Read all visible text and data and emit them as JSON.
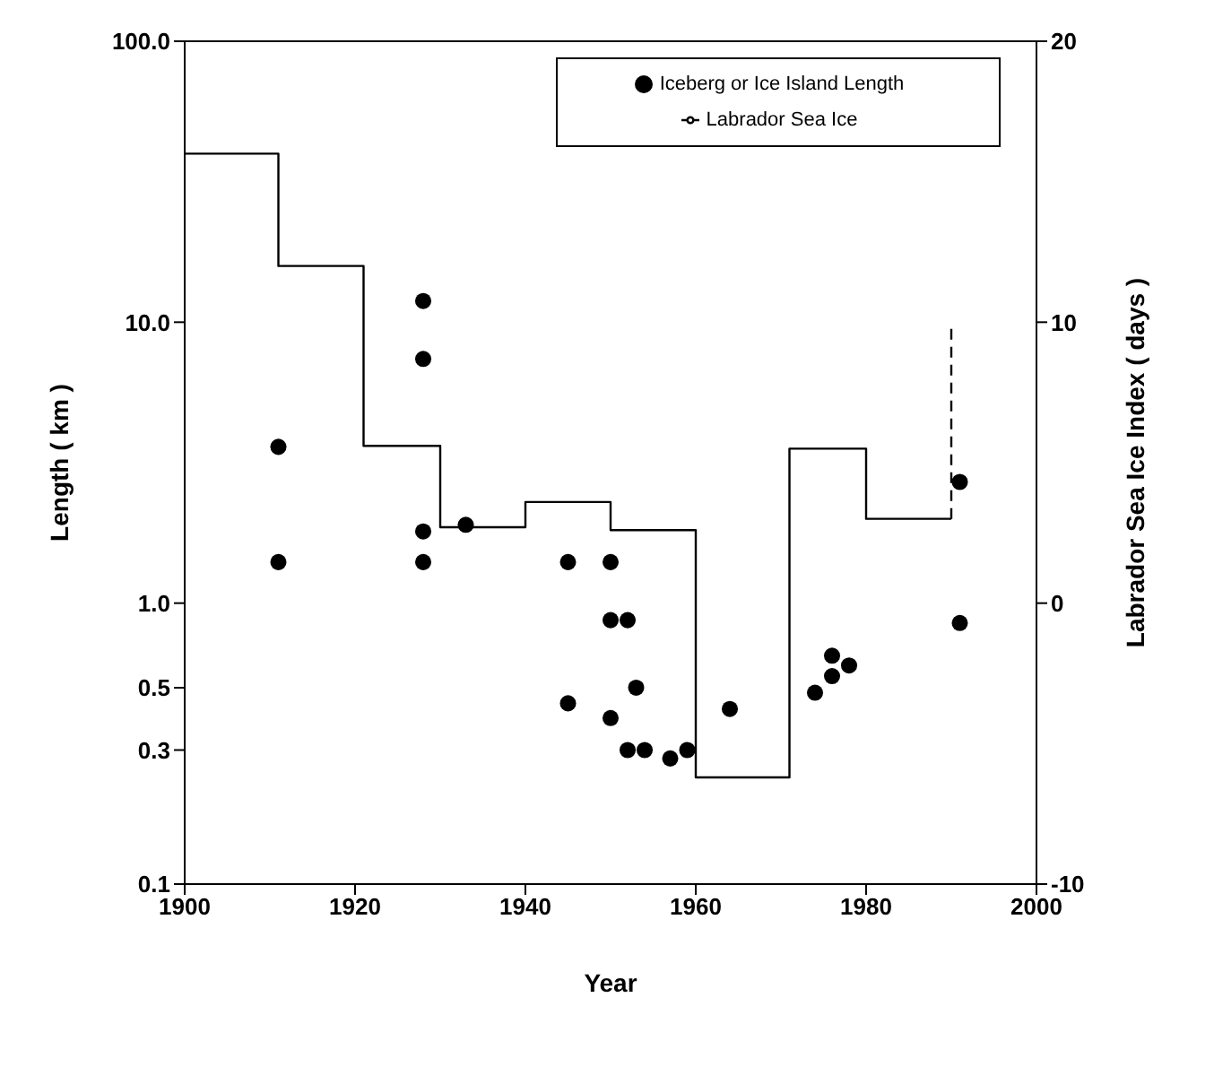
{
  "chart_data": {
    "type": "scatter",
    "xlabel": "Year",
    "ylabel": "Length ( km )",
    "y2label": "Labrador Sea Ice Index ( days )",
    "xlim": [
      1900,
      2000
    ],
    "xticks": [
      1900,
      1920,
      1940,
      1960,
      1980,
      2000
    ],
    "ylim": [
      0.1,
      100
    ],
    "yticks": [
      {
        "value": 0.1,
        "label": "0.1"
      },
      {
        "value": 0.3,
        "label": "0.3"
      },
      {
        "value": 0.5,
        "label": "0.5"
      },
      {
        "value": 1,
        "label": "1.0"
      },
      {
        "value": 10,
        "label": "10.0"
      },
      {
        "value": 100,
        "label": "100.0"
      }
    ],
    "y2lim": [
      -10,
      20
    ],
    "y2ticks": [
      -10,
      0,
      10,
      20
    ],
    "log": "y",
    "legend": "top right",
    "series": [
      {
        "name": "Iceberg or Ice Island Length",
        "marker": "circle",
        "color": "#000000",
        "x": [
          1911,
          1911,
          1928,
          1928,
          1928,
          1928,
          1933,
          1945,
          1945,
          1950,
          1950,
          1950,
          1952,
          1952,
          1953,
          1954,
          1957,
          1959,
          1964,
          1974,
          1976,
          1976,
          1978,
          1991,
          1991
        ],
        "values": [
          3.6,
          1.4,
          11.9,
          7.4,
          1.8,
          1.4,
          1.9,
          1.4,
          0.44,
          1.4,
          0.87,
          0.39,
          0.87,
          0.3,
          0.5,
          0.3,
          0.28,
          0.3,
          0.42,
          0.48,
          0.55,
          0.65,
          0.6,
          2.7,
          0.85
        ]
      },
      {
        "name": "Labrador Sea Ice",
        "type": "step",
        "axis": "y2",
        "color": "#000000",
        "line_style": "solid",
        "x": [
          1900,
          1911,
          1921,
          1930,
          1940,
          1950,
          1960,
          1971,
          1980,
          1990
        ],
        "values": [
          16,
          12,
          5.6,
          2.7,
          3.6,
          2.6,
          -6.2,
          5.5,
          3,
          3
        ]
      },
      {
        "type": "line",
        "axis": "y2",
        "color": "#000000",
        "line_style": "dashed",
        "x": [
          1990,
          1990
        ],
        "values": [
          3,
          9.8
        ]
      }
    ]
  }
}
